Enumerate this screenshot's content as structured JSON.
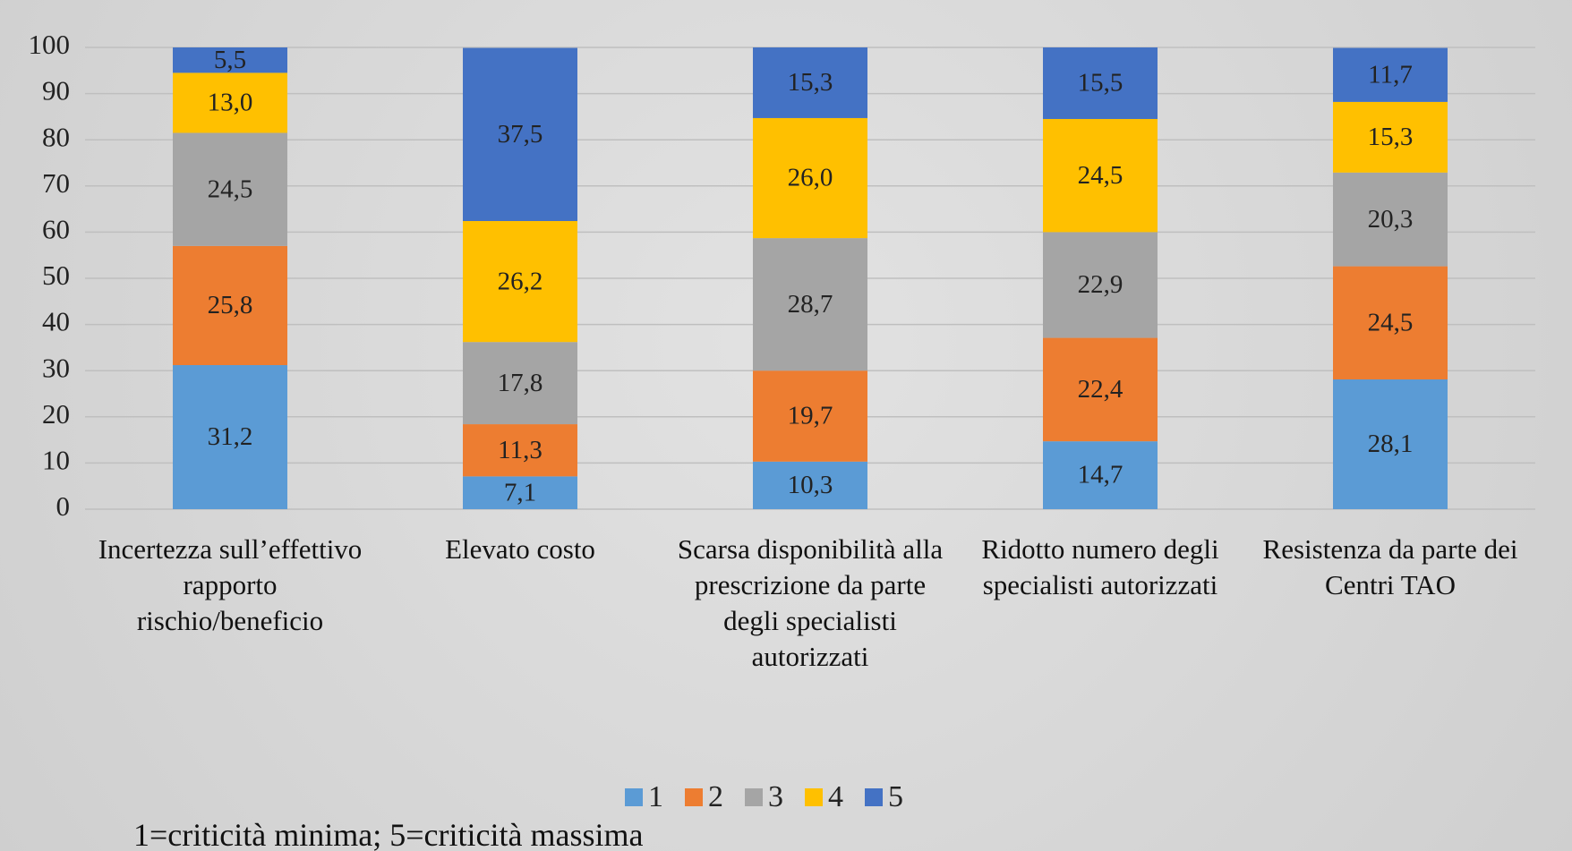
{
  "chart_data": {
    "type": "stacked_bar",
    "categories": [
      "Incertezza sull’effettivo rapporto rischio/beneficio",
      "Elevato costo",
      "Scarsa disponibilità alla prescrizione da parte degli specialisti autorizzati",
      "Ridotto numero degli specialisti autorizzati",
      "Resistenza da parte dei Centri TAO"
    ],
    "series": [
      {
        "name": "1",
        "color": "#5b9bd5",
        "values": [
          31.2,
          7.1,
          10.3,
          14.7,
          28.1
        ],
        "value_labels": [
          "31,2",
          "7,1",
          "10,3",
          "14,7",
          "28,1"
        ]
      },
      {
        "name": "2",
        "color": "#ed7d31",
        "values": [
          25.8,
          11.3,
          19.7,
          22.4,
          24.5
        ],
        "value_labels": [
          "25,8",
          "11,3",
          "19,7",
          "22,4",
          "24,5"
        ]
      },
      {
        "name": "3",
        "color": "#a5a5a5",
        "values": [
          24.5,
          17.8,
          28.7,
          22.9,
          20.3
        ],
        "value_labels": [
          "24,5",
          "17,8",
          "28,7",
          "22,9",
          "20,3"
        ]
      },
      {
        "name": "4",
        "color": "#ffc000",
        "values": [
          13.0,
          26.2,
          26.0,
          24.5,
          15.3
        ],
        "value_labels": [
          "13,0",
          "26,2",
          "26,0",
          "24,5",
          "15,3"
        ]
      },
      {
        "name": "5",
        "color": "#4472c4",
        "values": [
          5.5,
          37.5,
          15.3,
          15.5,
          11.7
        ],
        "value_labels": [
          "5,5",
          "37,5",
          "15,3",
          "15,5",
          "11,7"
        ]
      }
    ],
    "ylim": [
      0,
      100
    ],
    "yticks": [
      0,
      10,
      20,
      30,
      40,
      50,
      60,
      70,
      80,
      90,
      100
    ],
    "grid": true,
    "legend": "bottom",
    "note": "1=criticità minima; 5=criticità massima"
  }
}
